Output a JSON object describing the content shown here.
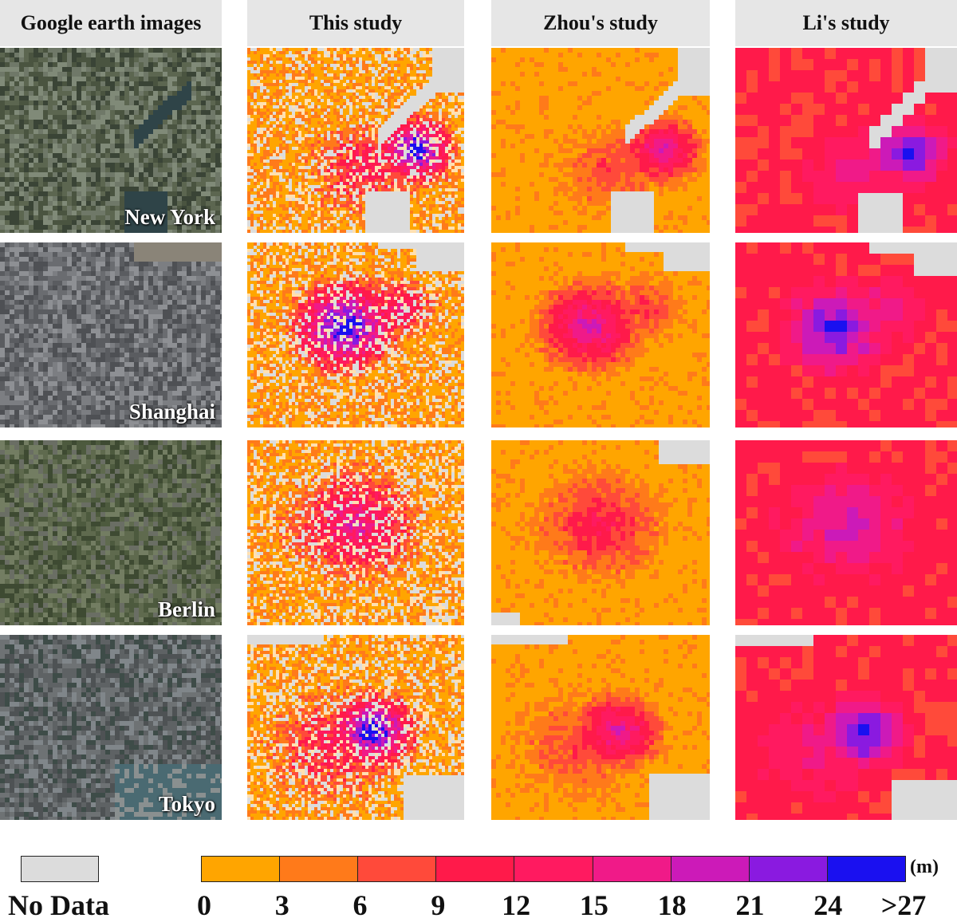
{
  "columns": [
    {
      "title": "Google earth images"
    },
    {
      "title": "This study"
    },
    {
      "title": "Zhou's study"
    },
    {
      "title": "Li's study"
    }
  ],
  "cities": [
    {
      "name": "New York"
    },
    {
      "name": "Shanghai"
    },
    {
      "name": "Berlin"
    },
    {
      "name": "Tokyo"
    }
  ],
  "legend": {
    "nodata_label": "No Data",
    "unit": "(m)",
    "ticks": [
      "0",
      "3",
      "6",
      "9",
      "12",
      "15",
      "18",
      "21",
      "24",
      ">27"
    ],
    "colors": [
      "#ffa500",
      "#ff7a1a",
      "#ff4a3a",
      "#ff1a4a",
      "#ff1a60",
      "#f01a88",
      "#cc1ab8",
      "#8a1ae0",
      "#1a10f0"
    ],
    "nodata_color": "#dcdcdc"
  }
}
